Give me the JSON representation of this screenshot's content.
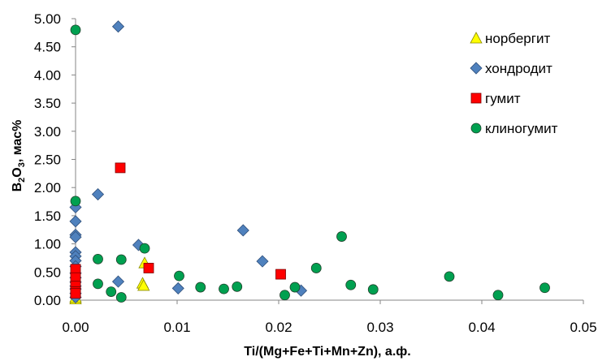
{
  "chart_data": {
    "type": "scatter",
    "xlabel": "Ti/(Mg+Fe+Ti+Mn+Zn), а.ф.",
    "ylabel": {
      "prefix": "B",
      "sub1": "2",
      "mid": "O",
      "sub2": "3",
      "suffix": ", мас%"
    },
    "xlim": [
      0,
      0.05
    ],
    "ylim": [
      0,
      5
    ],
    "x_ticks": [
      "0.00",
      "0.01",
      "0.02",
      "0.03",
      "0.04",
      "0.05"
    ],
    "y_ticks": [
      "0.00",
      "0.50",
      "1.00",
      "1.50",
      "2.00",
      "2.50",
      "3.00",
      "3.50",
      "4.00",
      "4.50",
      "5.00"
    ],
    "grid": false,
    "legend_position": "top-right",
    "series": [
      {
        "name": "норбергит",
        "marker": "triangle",
        "color": "#ffff00",
        "points": [
          [
            0.0,
            0.02
          ],
          [
            0.0,
            0.05
          ],
          [
            0.0066,
            0.3
          ],
          [
            0.0067,
            0.26
          ],
          [
            0.0068,
            0.66
          ]
        ]
      },
      {
        "name": "хондродит",
        "marker": "diamond",
        "color": "#4f81bd",
        "points": [
          [
            0.0,
            1.65
          ],
          [
            0.0,
            1.4
          ],
          [
            0.0,
            1.16
          ],
          [
            0.0,
            1.12
          ],
          [
            0.0,
            0.85
          ],
          [
            0.0,
            0.78
          ],
          [
            0.0,
            0.7
          ],
          [
            0.0,
            0.6
          ],
          [
            0.0,
            0.48
          ],
          [
            0.0,
            0.4
          ],
          [
            0.0,
            0.32
          ],
          [
            0.0,
            0.25
          ],
          [
            0.0,
            0.2
          ],
          [
            0.0,
            0.12
          ],
          [
            0.0,
            0.05
          ],
          [
            0.0042,
            4.86
          ],
          [
            0.0022,
            1.88
          ],
          [
            0.0062,
            0.98
          ],
          [
            0.0042,
            0.33
          ],
          [
            0.0101,
            0.21
          ],
          [
            0.0165,
            1.24
          ],
          [
            0.0184,
            0.69
          ],
          [
            0.0222,
            0.17
          ]
        ]
      },
      {
        "name": "гумит",
        "marker": "square",
        "color": "#ff0000",
        "points": [
          [
            0.0044,
            2.35
          ],
          [
            0.0,
            0.55
          ],
          [
            0.0,
            0.4
          ],
          [
            0.0,
            0.25
          ],
          [
            0.0,
            0.15
          ],
          [
            0.0,
            0.12
          ],
          [
            0.0072,
            0.57
          ],
          [
            0.0202,
            0.46
          ]
        ]
      },
      {
        "name": "клиногумит",
        "marker": "circle",
        "color": "#00a050",
        "points": [
          [
            0.0,
            4.8
          ],
          [
            0.0,
            1.76
          ],
          [
            0.0022,
            0.73
          ],
          [
            0.0045,
            0.72
          ],
          [
            0.0068,
            0.92
          ],
          [
            0.0022,
            0.29
          ],
          [
            0.0035,
            0.15
          ],
          [
            0.0045,
            0.05
          ],
          [
            0.0102,
            0.43
          ],
          [
            0.0123,
            0.23
          ],
          [
            0.0146,
            0.2
          ],
          [
            0.0159,
            0.24
          ],
          [
            0.0206,
            0.09
          ],
          [
            0.0216,
            0.23
          ],
          [
            0.0237,
            0.57
          ],
          [
            0.0262,
            1.13
          ],
          [
            0.0271,
            0.27
          ],
          [
            0.0293,
            0.19
          ],
          [
            0.0368,
            0.42
          ],
          [
            0.0416,
            0.09
          ],
          [
            0.0462,
            0.22
          ]
        ]
      }
    ]
  }
}
